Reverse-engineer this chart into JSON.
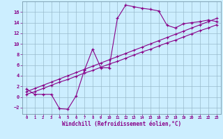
{
  "xlabel": "Windchill (Refroidissement éolien,°C)",
  "bg_color": "#cceeff",
  "line_color": "#880088",
  "grid_color": "#99bbcc",
  "xlim": [
    -0.5,
    23.5
  ],
  "ylim": [
    -3.2,
    18.0
  ],
  "xticks": [
    0,
    1,
    2,
    3,
    4,
    5,
    6,
    7,
    8,
    9,
    10,
    11,
    12,
    13,
    14,
    15,
    16,
    17,
    18,
    19,
    20,
    21,
    22,
    23
  ],
  "yticks": [
    -2,
    0,
    2,
    4,
    6,
    8,
    10,
    12,
    14,
    16
  ],
  "curve1_x": [
    0,
    1,
    2,
    3,
    4,
    5,
    6,
    7,
    8,
    9,
    10,
    11,
    12,
    13,
    14,
    15,
    16,
    17,
    18,
    19,
    20,
    21,
    22,
    23
  ],
  "curve1_y": [
    1.5,
    0.5,
    0.5,
    0.5,
    -2.2,
    -2.3,
    0.2,
    5.0,
    9.0,
    5.5,
    5.5,
    14.8,
    17.3,
    17.0,
    16.7,
    16.5,
    16.2,
    13.5,
    13.0,
    13.8,
    14.0,
    14.2,
    14.5,
    14.2
  ],
  "line1_x": [
    0,
    1,
    2,
    3,
    4,
    5,
    6,
    7,
    8,
    9,
    10,
    11,
    12,
    13,
    14,
    15,
    16,
    17,
    18,
    19,
    20,
    21,
    22,
    23
  ],
  "line1_y": [
    0.5,
    1.0,
    1.6,
    2.2,
    2.8,
    3.3,
    3.9,
    4.5,
    5.0,
    5.6,
    6.2,
    6.7,
    7.3,
    7.9,
    8.5,
    9.0,
    9.6,
    10.2,
    10.7,
    11.3,
    11.9,
    12.5,
    13.0,
    13.6
  ],
  "line2_x": [
    0,
    1,
    2,
    3,
    4,
    5,
    6,
    7,
    8,
    9,
    10,
    11,
    12,
    13,
    14,
    15,
    16,
    17,
    18,
    19,
    20,
    21,
    22,
    23
  ],
  "line2_y": [
    1.0,
    1.6,
    2.2,
    2.8,
    3.4,
    4.0,
    4.6,
    5.2,
    5.8,
    6.4,
    7.0,
    7.6,
    8.2,
    8.8,
    9.4,
    10.0,
    10.6,
    11.2,
    11.8,
    12.4,
    13.0,
    13.6,
    14.2,
    14.8
  ]
}
